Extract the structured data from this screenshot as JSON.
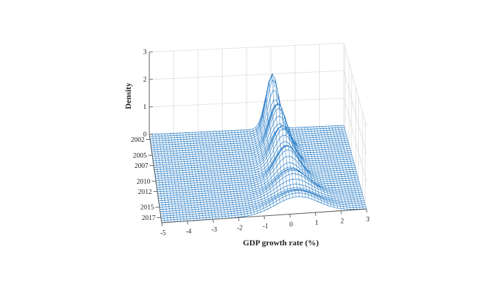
{
  "chart_data": {
    "type": "surface",
    "title": "",
    "xlabel": "GDP growth rate (%)",
    "ylabel": "",
    "zlabel": "Density",
    "x_ticks": [
      -5,
      -4,
      -3,
      -2,
      -1,
      0,
      1,
      2,
      3
    ],
    "x_tick_labels": [
      "-5",
      "-4",
      "-3",
      "-2",
      "-1",
      "0",
      "1",
      "2",
      "3"
    ],
    "y_ticks": [
      2002,
      2005,
      2007,
      2010,
      2012,
      2015,
      2017
    ],
    "y_tick_labels": [
      "2002",
      "2005",
      "2007",
      "2010",
      "2012",
      "2015",
      "2017"
    ],
    "z_ticks": [
      0,
      1,
      2,
      3
    ],
    "z_tick_labels": [
      "0",
      "1",
      "2",
      "3"
    ],
    "xlim": [
      -5,
      3
    ],
    "ylim": [
      2001,
      2018
    ],
    "zlim": [
      0,
      3
    ],
    "grid": true,
    "surface_color": "#1f77c4",
    "density_peaks": [
      {
        "year": 2002,
        "mode": 0.0,
        "peak": 2.0
      },
      {
        "year": 2005,
        "mode": 0.1,
        "peak": 1.5
      },
      {
        "year": 2007,
        "mode": 0.1,
        "peak": 1.3
      },
      {
        "year": 2010,
        "mode": 0.2,
        "peak": 1.2
      },
      {
        "year": 2012,
        "mode": 0.2,
        "peak": 1.0
      },
      {
        "year": 2015,
        "mode": 0.3,
        "peak": 0.7
      },
      {
        "year": 2017,
        "mode": 0.3,
        "peak": 0.6
      }
    ]
  }
}
